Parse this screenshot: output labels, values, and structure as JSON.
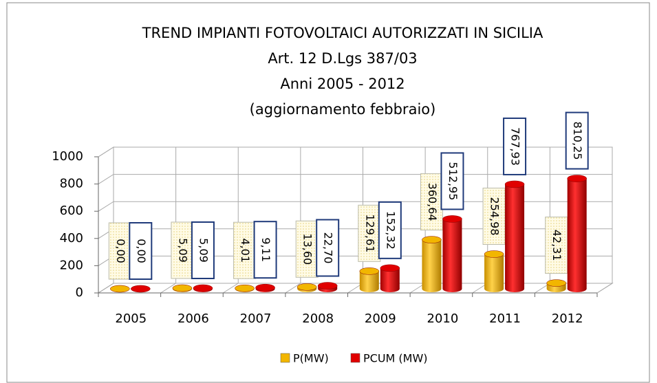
{
  "chart_data": {
    "type": "bar3d",
    "title": "TREND IMPIANTI FOTOVOLTAICI AUTORIZZATI IN SICILIA",
    "subtitle": [
      "Art. 12 D.Lgs 387/03",
      "Anni 2005 - 2012",
      "(aggiornamento febbraio)"
    ],
    "categories": [
      "2005",
      "2006",
      "2007",
      "2008",
      "2009",
      "2010",
      "2011",
      "2012"
    ],
    "series": [
      {
        "name": "P(MW)",
        "color": "#f2b600",
        "values": [
          0,
          5.09,
          4.01,
          13.6,
          129.61,
          360.64,
          254.98,
          42.31
        ],
        "value_labels": [
          "0,00",
          "5,09",
          "4,01",
          "13,60",
          "129,61",
          "360,64",
          "254,98",
          "42,31"
        ]
      },
      {
        "name": "PCUM (MW)",
        "color": "#e00000",
        "values": [
          0,
          5.09,
          9.11,
          22.7,
          152.32,
          512.95,
          767.93,
          810.25
        ],
        "value_labels": [
          "0,00",
          "5,09",
          "9,11",
          "22,70",
          "152,32",
          "512,95",
          "767,93",
          "810,25"
        ]
      }
    ],
    "ylim": [
      0,
      1000
    ],
    "yticks": [
      0,
      200,
      400,
      600,
      800,
      1000
    ],
    "grid": true,
    "legend": "bottom"
  }
}
